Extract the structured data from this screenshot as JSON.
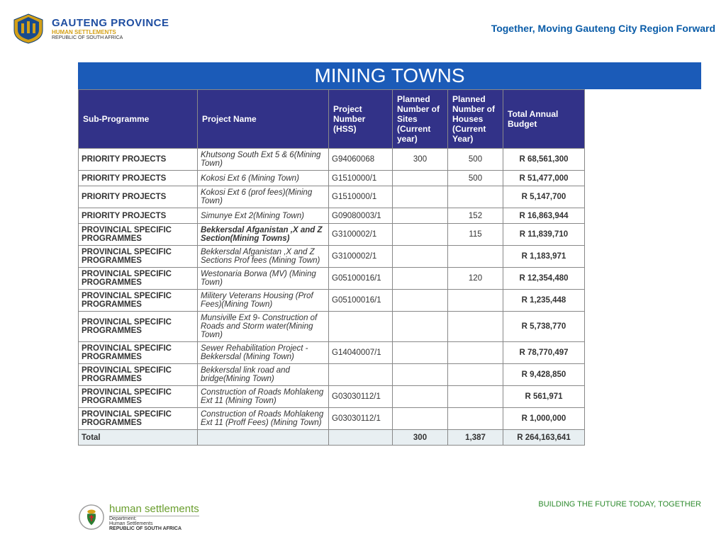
{
  "header": {
    "province": "GAUTENG PROVINCE",
    "dept": "HUMAN SETTLEMENTS",
    "republic": "REPUBLIC OF SOUTH AFRICA",
    "tagline": "Together, Moving Gauteng City Region Forward"
  },
  "title": "MINING TOWNS",
  "columns": [
    "Sub-Programme",
    "Project Name",
    "Project Number (HSS)",
    "Planned Number of Sites (Current year)",
    "Planned Number of Houses (Current Year)",
    "Total Annual Budget"
  ],
  "rows": [
    {
      "sub": " PRIORITY PROJECTS",
      "proj": "Khutsong South Ext  5 & 6(Mining Town)",
      "num": "G94060068",
      "sites": "300",
      "houses": "500",
      "budget": "R 68,561,300"
    },
    {
      "sub": " PRIORITY PROJECTS",
      "proj": "Kokosi Ext 6 (Mining Town)",
      "num": "G1510000/1",
      "sites": "",
      "houses": "500",
      "budget": "R 51,477,000"
    },
    {
      "sub": " PRIORITY PROJECTS",
      "proj": "Kokosi Ext 6 (prof fees)(Mining Town)",
      "num": "G1510000/1",
      "sites": "",
      "houses": "",
      "budget": "R 5,147,700"
    },
    {
      "sub": " PRIORITY PROJECTS",
      "proj": "Simunye Ext 2(Mining Town)",
      "num": "G09080003/1",
      "sites": "",
      "houses": "152",
      "budget": "R 16,863,944"
    },
    {
      "sub": " PROVINCIAL SPECIFIC PROGRAMMES",
      "proj": "Bekkersdal Afganistan ,X and Z Section(Mining Towns)",
      "projBold": true,
      "num": "G3100002/1",
      "sites": "",
      "houses": "115",
      "budget": "R 11,839,710"
    },
    {
      "sub": " PROVINCIAL SPECIFIC PROGRAMMES",
      "proj": "Bekkersdal Afganistan ,X and Z Sections Prof fees (Mining Town)",
      "num": "G3100002/1",
      "sites": "",
      "houses": "",
      "budget": "R 1,183,971"
    },
    {
      "sub": " PROVINCIAL SPECIFIC PROGRAMMES",
      "proj": "Westonaria Borwa (MV) (Mining Town)",
      "num": "G05100016/1",
      "sites": "",
      "houses": "120",
      "budget": "R 12,354,480"
    },
    {
      "sub": " PROVINCIAL SPECIFIC PROGRAMMES",
      "proj": "Militery Veterans Housing (Prof Fees)(Mining Town)",
      "num": "G05100016/1",
      "sites": "",
      "houses": "",
      "budget": "R 1,235,448"
    },
    {
      "sub": " PROVINCIAL SPECIFIC PROGRAMMES",
      "proj": "Munsiville Ext 9- Construction of Roads and Storm water(Mining Town)",
      "num": "",
      "sites": "",
      "houses": "",
      "budget": "R 5,738,770"
    },
    {
      "sub": " PROVINCIAL SPECIFIC PROGRAMMES",
      "proj": "Sewer Rehabilitation Project - Bekkersdal (Mining Town)",
      "num": "G14040007/1",
      "sites": "",
      "houses": "",
      "budget": "R 78,770,497"
    },
    {
      "sub": " PROVINCIAL SPECIFIC PROGRAMMES",
      "proj": "Bekkersdal link road and bridge(Mining Town)",
      "num": "",
      "sites": "",
      "houses": "",
      "budget": "R 9,428,850"
    },
    {
      "sub": "PROVINCIAL SPECIFIC PROGRAMMES",
      "proj": "Construction of Roads Mohlakeng Ext 11 (Mining Town)",
      "num": "G03030112/1",
      "sites": "",
      "houses": "",
      "budget": "R 561,971"
    },
    {
      "sub": "PROVINCIAL SPECIFIC PROGRAMMES",
      "proj": "Construction of Roads Mohlakeng Ext 11 (Proff Fees) (Mining Town)",
      "num": "G03030112/1",
      "sites": "",
      "houses": "",
      "budget": "R 1,000,000"
    }
  ],
  "total": {
    "label": "Total",
    "sites": "300",
    "houses": "1,387",
    "budget": "R 264,163,641"
  },
  "footer": {
    "hs": "human settlements",
    "dept": "Department:",
    "dept2": "Human Settlements",
    "rep": "REPUBLIC OF SOUTH AFRICA",
    "slogan": "BUILDING THE FUTURE TODAY, TOGETHER"
  },
  "colors": {
    "titleBg": "#1b5bb8",
    "headerBg": "#323288",
    "totalBg": "#e8eff2"
  }
}
